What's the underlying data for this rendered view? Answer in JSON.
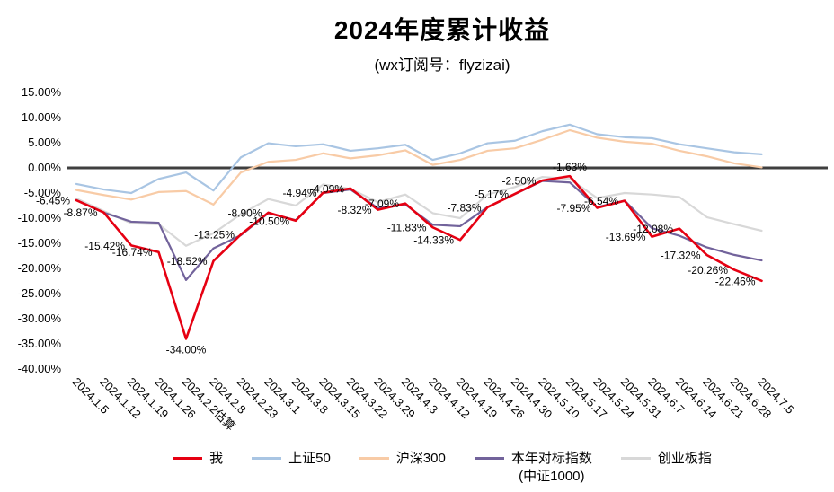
{
  "title": "2024年度累计收益",
  "subtitle": "(wx订阅号：flyzizai)",
  "chart_data": {
    "type": "line",
    "title": "2024年度累计收益",
    "subtitle": "(wx订阅号：flyzizai)",
    "grid": false,
    "legend_position": "bottom",
    "ylim": [
      -40,
      15
    ],
    "zero_line_color": "#3f3f3f",
    "ytick_labels": [
      "15.00%",
      "10.00%",
      "5.00%",
      "0.00%",
      "-5.00%",
      "-10.00%",
      "-15.00%",
      "-20.00%",
      "-25.00%",
      "-30.00%",
      "-35.00%",
      "-40.00%"
    ],
    "x": [
      "2024.1.5",
      "2024.1.12",
      "2024.1.19",
      "2024.1.26",
      "2024.2.2估算",
      "2024.2.8",
      "2024.2.23",
      "2024.3.1",
      "2024.3.8",
      "2024.3.15",
      "2024.3.22",
      "2024.3.29",
      "2024.4.3",
      "2024.4.12",
      "2024.4.19",
      "2024.4.26",
      "2024.4.30",
      "2024.5.10",
      "2024.5.17",
      "2024.5.24",
      "2024.5.31",
      "2024.6.7",
      "2024.6.14",
      "2024.6.21",
      "2024.6.28",
      "2024.7.5"
    ],
    "series": [
      {
        "key": "me",
        "name": "我",
        "color": "#e60012",
        "width": 2.6,
        "values": [
          -6.45,
          -8.87,
          -15.42,
          -16.74,
          -34.0,
          -18.52,
          -13.25,
          -8.9,
          -10.5,
          -4.94,
          -4.09,
          -8.32,
          -7.09,
          -11.83,
          -14.33,
          -7.83,
          -5.17,
          -2.5,
          -1.63,
          -7.95,
          -6.54,
          -13.69,
          -12.08,
          -17.32,
          -20.26,
          -22.46
        ],
        "labels": [
          "-6.45%",
          "-8.87%",
          "-15.42%",
          "-16.74%",
          "-34.00%",
          "-18.52%",
          "-13.25%",
          "-8.90%",
          "-10.50%",
          "-4.94%",
          "-4.09%",
          "-8.32%",
          "-7.09%",
          "-11.83%",
          "-14.33%",
          "-7.83%",
          "-5.17%",
          "-2.50%",
          "-1.63%",
          "-7.95%",
          "-6.54%",
          "-13.69%",
          "-12.08%",
          "-17.32%",
          "-20.26%",
          "-22.46%"
        ]
      },
      {
        "key": "sse50",
        "name": "上证50",
        "color": "#a9c5e3",
        "width": 2.2,
        "values": [
          -3.2,
          -4.3,
          -5.0,
          -2.2,
          -0.9,
          -4.5,
          2.1,
          4.9,
          4.3,
          4.7,
          3.4,
          3.9,
          4.6,
          1.6,
          2.9,
          4.9,
          5.4,
          7.3,
          8.6,
          6.7,
          6.1,
          5.9,
          4.7,
          3.9,
          3.1,
          2.7
        ]
      },
      {
        "key": "csi300",
        "name": "沪深300",
        "color": "#f8cba6",
        "width": 2.2,
        "values": [
          -4.4,
          -5.4,
          -6.3,
          -4.8,
          -4.6,
          -7.3,
          -0.9,
          1.2,
          1.6,
          2.9,
          1.9,
          2.5,
          3.5,
          0.6,
          1.6,
          3.4,
          3.9,
          5.6,
          7.5,
          6.0,
          5.2,
          4.8,
          3.4,
          2.3,
          0.9,
          0.1
        ]
      },
      {
        "key": "csi1000",
        "name": "本年对标指数",
        "name2": "(中证1000)",
        "color": "#72639b",
        "width": 2.2,
        "values": [
          -6.4,
          -8.9,
          -10.7,
          -10.9,
          -22.3,
          -16.0,
          -13.4,
          -9.0,
          -10.4,
          -5.0,
          -4.3,
          -8.0,
          -7.3,
          -11.3,
          -11.6,
          -7.8,
          -5.2,
          -2.6,
          -2.9,
          -7.8,
          -6.5,
          -12.0,
          -13.5,
          -15.8,
          -17.3,
          -18.4
        ]
      },
      {
        "key": "chinext",
        "name": "创业板指",
        "color": "#d8d8d8",
        "width": 2.2,
        "values": [
          -6.1,
          -8.6,
          -11.0,
          -11.2,
          -15.5,
          -13.0,
          -9.2,
          -6.2,
          -7.5,
          -3.3,
          -4.2,
          -6.8,
          -5.3,
          -9.0,
          -10.0,
          -5.3,
          -3.8,
          -1.8,
          -2.2,
          -6.0,
          -5.0,
          -5.3,
          -5.8,
          -9.8,
          -11.2,
          -12.5
        ]
      }
    ]
  }
}
